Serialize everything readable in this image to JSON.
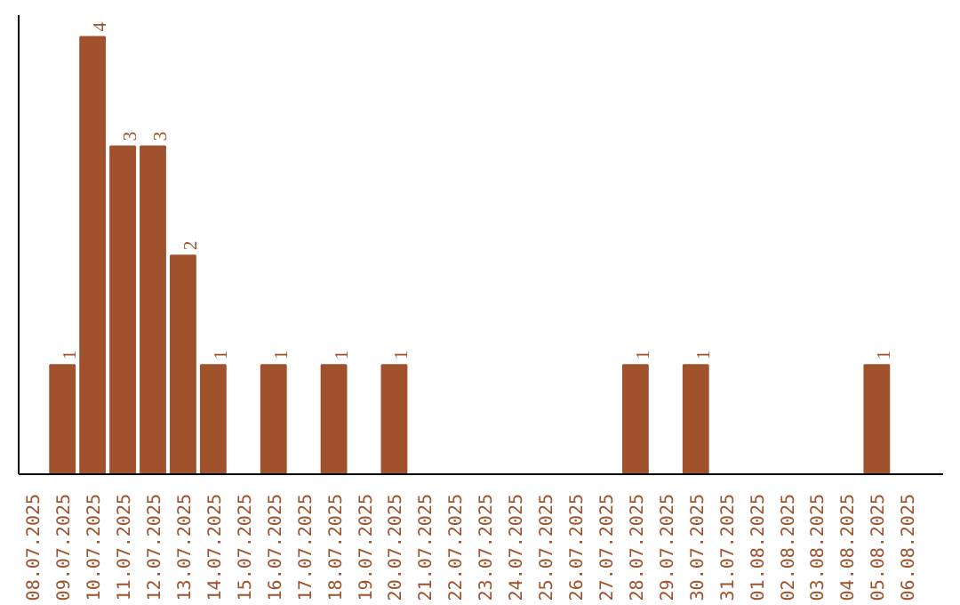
{
  "chart_data": {
    "type": "bar",
    "categories": [
      "08.07.2025",
      "09.07.2025",
      "10.07.2025",
      "11.07.2025",
      "12.07.2025",
      "13.07.2025",
      "14.07.2025",
      "15.07.2025",
      "16.07.2025",
      "17.07.2025",
      "18.07.2025",
      "19.07.2025",
      "20.07.2025",
      "21.07.2025",
      "22.07.2025",
      "23.07.2025",
      "24.07.2025",
      "25.07.2025",
      "26.07.2025",
      "27.07.2025",
      "28.07.2025",
      "29.07.2025",
      "30.07.2025",
      "31.07.2025",
      "01.08.2025",
      "02.08.2025",
      "03.08.2025",
      "04.08.2025",
      "05.08.2025",
      "06.08.2025"
    ],
    "values": [
      0,
      1,
      4,
      3,
      3,
      2,
      1,
      0,
      1,
      0,
      1,
      0,
      1,
      0,
      0,
      0,
      0,
      0,
      0,
      0,
      1,
      0,
      1,
      0,
      0,
      0,
      0,
      0,
      1,
      0
    ],
    "value_labels": [
      null,
      "1",
      "4",
      "3",
      "3",
      "2",
      "1",
      null,
      "1",
      null,
      "1",
      null,
      "1",
      null,
      null,
      null,
      null,
      null,
      null,
      null,
      "1",
      null,
      "1",
      null,
      null,
      null,
      null,
      null,
      "1",
      null
    ],
    "color": "#a0522d",
    "ylim": [
      0,
      4.2
    ],
    "tick_labels": "x",
    "grid": false
  }
}
